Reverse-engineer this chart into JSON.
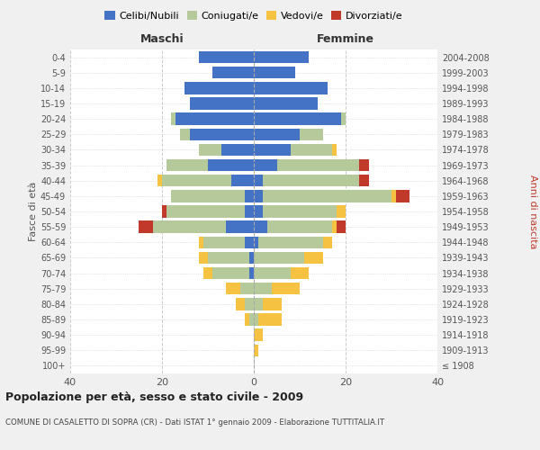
{
  "age_groups": [
    "100+",
    "95-99",
    "90-94",
    "85-89",
    "80-84",
    "75-79",
    "70-74",
    "65-69",
    "60-64",
    "55-59",
    "50-54",
    "45-49",
    "40-44",
    "35-39",
    "30-34",
    "25-29",
    "20-24",
    "15-19",
    "10-14",
    "5-9",
    "0-4"
  ],
  "birth_years": [
    "≤ 1908",
    "1909-1913",
    "1914-1918",
    "1919-1923",
    "1924-1928",
    "1929-1933",
    "1934-1938",
    "1939-1943",
    "1944-1948",
    "1949-1953",
    "1954-1958",
    "1959-1963",
    "1964-1968",
    "1969-1973",
    "1974-1978",
    "1979-1983",
    "1984-1988",
    "1989-1993",
    "1994-1998",
    "1999-2003",
    "2004-2008"
  ],
  "colors": {
    "celibe": "#4472c4",
    "coniugato": "#b5c99a",
    "vedovo": "#f5c242",
    "divorziato": "#c0392b"
  },
  "maschi": {
    "celibe": [
      0,
      0,
      0,
      0,
      0,
      0,
      1,
      1,
      2,
      6,
      2,
      2,
      5,
      10,
      7,
      14,
      17,
      14,
      15,
      9,
      12
    ],
    "coniugato": [
      0,
      0,
      0,
      1,
      2,
      3,
      8,
      9,
      9,
      16,
      17,
      16,
      15,
      9,
      5,
      2,
      1,
      0,
      0,
      0,
      0
    ],
    "vedovo": [
      0,
      0,
      0,
      1,
      2,
      3,
      2,
      2,
      1,
      0,
      0,
      0,
      1,
      0,
      0,
      0,
      0,
      0,
      0,
      0,
      0
    ],
    "divorziato": [
      0,
      0,
      0,
      0,
      0,
      0,
      0,
      0,
      0,
      3,
      1,
      0,
      0,
      0,
      0,
      0,
      0,
      0,
      0,
      0,
      0
    ]
  },
  "femmine": {
    "nubile": [
      0,
      0,
      0,
      0,
      0,
      0,
      0,
      0,
      1,
      3,
      2,
      2,
      2,
      5,
      8,
      10,
      19,
      14,
      16,
      9,
      12
    ],
    "coniugata": [
      0,
      0,
      0,
      1,
      2,
      4,
      8,
      11,
      14,
      14,
      16,
      28,
      21,
      18,
      9,
      5,
      1,
      0,
      0,
      0,
      0
    ],
    "vedova": [
      0,
      1,
      2,
      5,
      4,
      6,
      4,
      4,
      2,
      1,
      2,
      1,
      0,
      0,
      1,
      0,
      0,
      0,
      0,
      0,
      0
    ],
    "divorziata": [
      0,
      0,
      0,
      0,
      0,
      0,
      0,
      0,
      0,
      2,
      0,
      3,
      2,
      2,
      0,
      0,
      0,
      0,
      0,
      0,
      0
    ]
  },
  "title": "Popolazione per età, sesso e stato civile - 2009",
  "subtitle": "COMUNE DI CASALETTO DI SOPRA (CR) - Dati ISTAT 1° gennaio 2009 - Elaborazione TUTTITALIA.IT",
  "ylabel_left": "Fasce di età",
  "ylabel_right": "Anni di nascita",
  "xlabel_left": "Maschi",
  "xlabel_right": "Femmine",
  "xlim": 40,
  "bg_color": "#f0f0f0",
  "plot_bg": "#ffffff",
  "legend_labels": [
    "Celibi/Nubili",
    "Coniugati/e",
    "Vedovi/e",
    "Divorziati/e"
  ]
}
